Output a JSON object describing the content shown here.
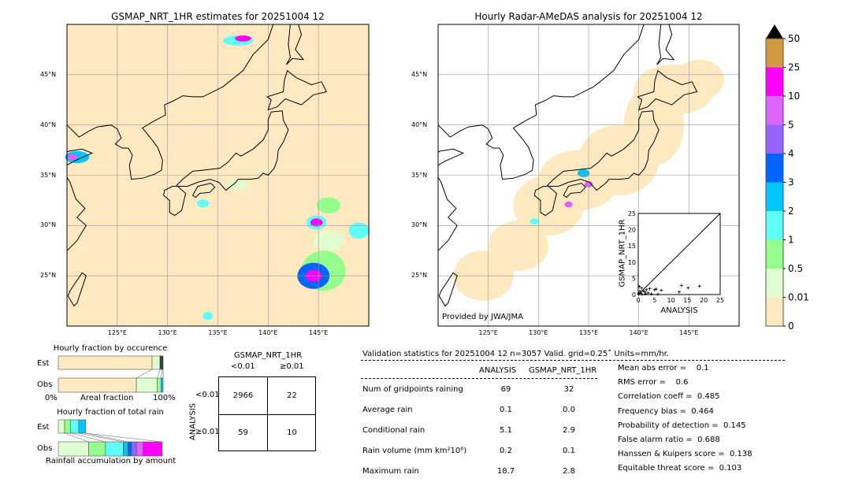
{
  "left_map": {
    "title": "GSMAP_NRT_1HR estimates for 20251004 12"
  },
  "right_map": {
    "title": "Hourly Radar-AMeDAS analysis for 20251004 12",
    "credit": "Provided by JWA/JMA"
  },
  "map_axes": {
    "lon_ticks": [
      "125°E",
      "130°E",
      "135°E",
      "140°E",
      "145°E"
    ],
    "lat_ticks": [
      "45°N",
      "40°N",
      "35°N",
      "30°N",
      "25°N"
    ],
    "lon_range": [
      120,
      150
    ],
    "lat_range": [
      20,
      50
    ]
  },
  "colorbar": {
    "levels": [
      "0",
      "0.01",
      "0.5",
      "1",
      "2",
      "3",
      "4",
      "5",
      "10",
      "25",
      "50"
    ],
    "colors": [
      "#fee9c0",
      "#e0fecf",
      "#94fd8e",
      "#5ffef9",
      "#00c6fe",
      "#0064ff",
      "#9464fd",
      "#dd63fb",
      "#ff00ff",
      "#cf9a40"
    ],
    "extend": "max"
  },
  "scatter": {
    "xlabel": "ANALYSIS",
    "ylabel": "GSMAP_NRT_1HR",
    "ticks": [
      "0",
      "5",
      "10",
      "15",
      "20",
      "25"
    ],
    "points": [
      [
        0.2,
        0.3
      ],
      [
        0.5,
        1.0
      ],
      [
        0.8,
        0.5
      ],
      [
        1,
        2
      ],
      [
        0.3,
        2.5
      ],
      [
        1.5,
        1.2
      ],
      [
        2,
        0.8
      ],
      [
        2.5,
        1.5
      ],
      [
        3,
        0.5
      ],
      [
        3.5,
        1.8
      ],
      [
        4,
        0.2
      ],
      [
        5,
        1.5
      ],
      [
        5.5,
        1.7
      ],
      [
        7,
        1.3
      ],
      [
        12.5,
        0.8
      ],
      [
        13.2,
        2.8
      ],
      [
        15.2,
        2.1
      ],
      [
        18.7,
        2.6
      ],
      [
        0.1,
        0.1
      ],
      [
        1.2,
        0.1
      ],
      [
        2.2,
        0.2
      ],
      [
        6,
        0.1
      ]
    ]
  },
  "occurrence_chart": {
    "title": "Hourly fraction by occurence",
    "rows": [
      "Est",
      "Obs"
    ],
    "xlabel_left": "0%",
    "xlabel_mid": "Areal fraction",
    "xlabel_right": "100%",
    "est_fractions": [
      0.895,
      0.075,
      0.02,
      0.01
    ],
    "obs_fractions": [
      0.745,
      0.2,
      0.035,
      0.02
    ]
  },
  "rain_chart": {
    "title": "Hourly fraction of total rain",
    "rows": [
      "Est",
      "Obs"
    ],
    "xlabel": "Rainfall accumulation by amount",
    "est_fractions": [
      0.06,
      0.055,
      0.08,
      0.065
    ],
    "obs_fractions": [
      0.29,
      0.16,
      0.17,
      0.045,
      0.035,
      0.045,
      0.065,
      0.18
    ]
  },
  "contingency": {
    "col_title": "GSMAP_NRT_1HR",
    "cols": [
      "<0.01",
      "≥0.01"
    ],
    "row_title": "ANALYSIS",
    "rows": [
      "<0.01",
      "≥0.01"
    ],
    "cells": [
      [
        "2966",
        "22"
      ],
      [
        "59",
        "10"
      ]
    ]
  },
  "validation": {
    "header": "Validation statistics for 20251004 12  n=3057 Valid. grid=0.25˚ Units=mm/hr.",
    "col_analysis": "ANALYSIS",
    "col_gsmap": "GSMAP_NRT_1HR",
    "rows": [
      {
        "label": "Num of gridpoints raining",
        "analysis": "69",
        "gsmap": "32"
      },
      {
        "label": "Average rain",
        "analysis": "0.1",
        "gsmap": "0.0"
      },
      {
        "label": "Conditional rain",
        "analysis": "5.1",
        "gsmap": "2.9"
      },
      {
        "label": "Rain volume (mm km²10⁶)",
        "analysis": "0.2",
        "gsmap": "0.1"
      },
      {
        "label": "Maximum rain",
        "analysis": "18.7",
        "gsmap": "2.8"
      }
    ],
    "scores": [
      "Mean abs error =    0.1",
      "RMS error =    0.6",
      "Correlation coeff =  0.485",
      "Frequency bias =  0.464",
      "Probability of detection =  0.145",
      "False alarm ratio =  0.688",
      "Hanssen & Kuipers score =  0.138",
      "Equitable threat score =  0.103"
    ]
  }
}
